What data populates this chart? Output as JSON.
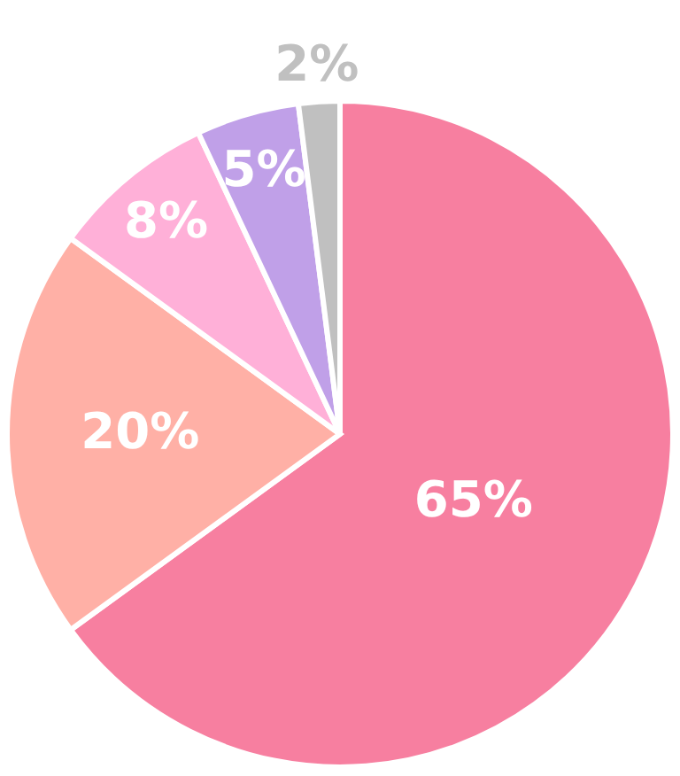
{
  "chart_data": {
    "type": "pie",
    "categories": [
      null,
      null,
      null,
      null,
      null
    ],
    "values": [
      65,
      20,
      8,
      5,
      2
    ],
    "colors": [
      "#f77fa0",
      "#ffb0a6",
      "#ffb0d8",
      "#c0a0e8",
      "#c0c0c0"
    ],
    "value_labels": [
      "65%",
      "20%",
      "8%",
      "5%",
      "2%"
    ]
  }
}
